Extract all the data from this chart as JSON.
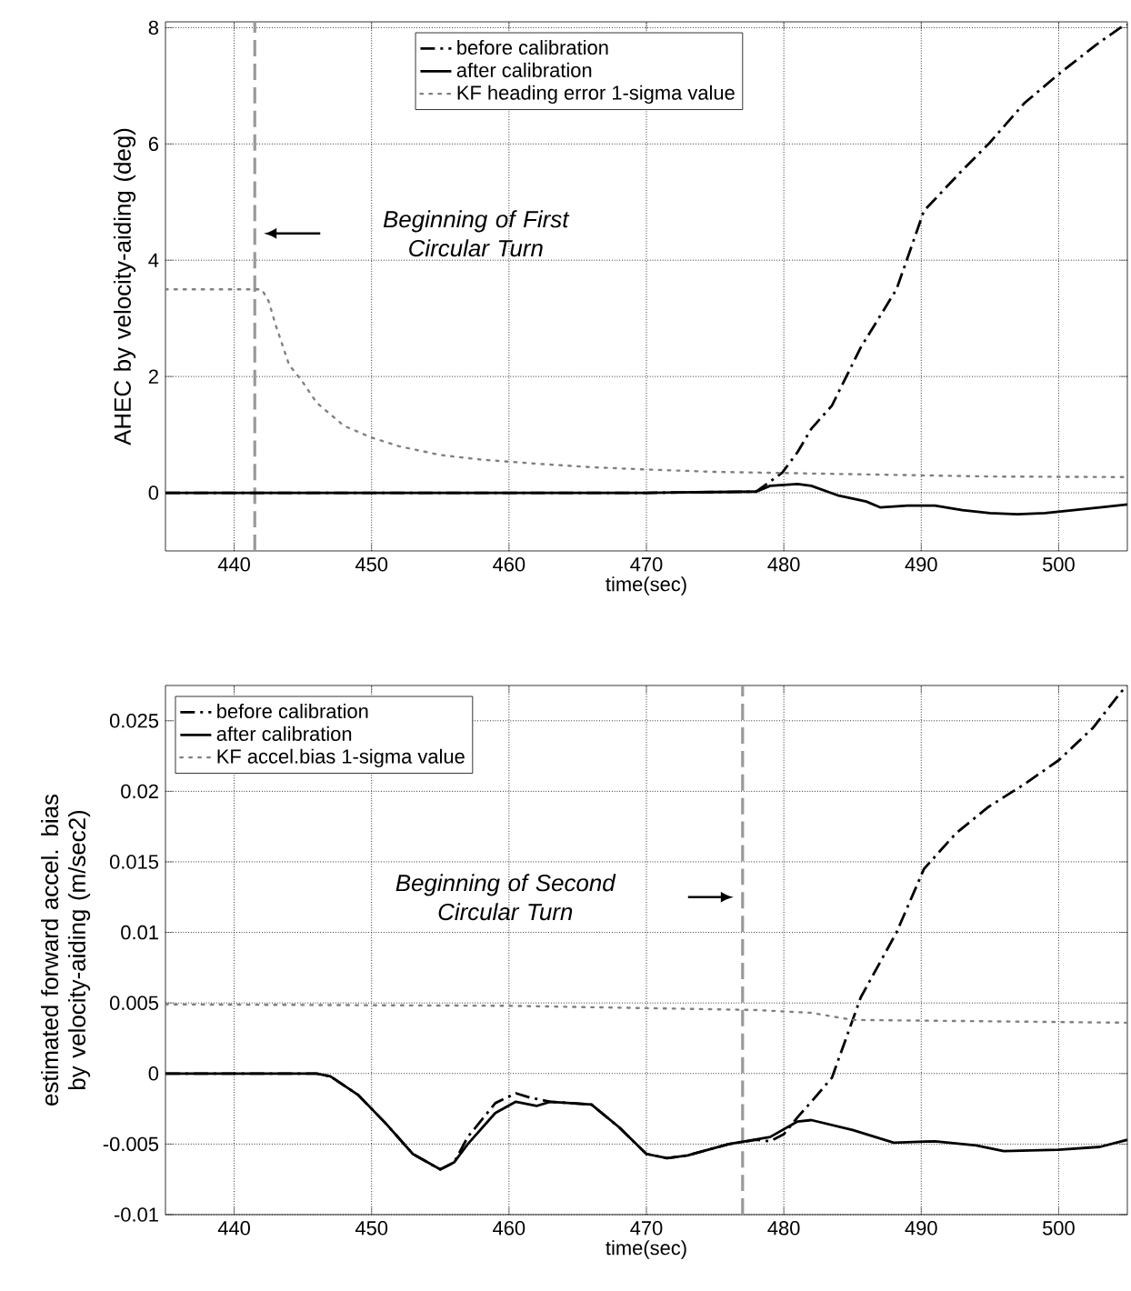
{
  "chart_data": [
    {
      "type": "line",
      "xlabel": "time(sec)",
      "ylabel": "AHEC by velocity-aiding (deg)",
      "xlim": [
        435,
        505
      ],
      "ylim": [
        -1,
        8.1
      ],
      "xticks": [
        440,
        450,
        460,
        470,
        480,
        490,
        500
      ],
      "yticks": [
        0,
        2,
        4,
        6,
        8
      ],
      "grid": true,
      "legend": "top",
      "series": [
        {
          "name": "before calibration",
          "color": "#000000",
          "line_style": "dashdot",
          "x": [
            435,
            450,
            470,
            478,
            479.9,
            481,
            482,
            483.5,
            485.6,
            488.2,
            490.2,
            492.8,
            494.9,
            497.5,
            500,
            502.7,
            504.5,
            505
          ],
          "values": [
            0,
            0,
            0,
            0.02,
            0.35,
            0.7,
            1.1,
            1.5,
            2.5,
            3.5,
            4.85,
            5.5,
            6.0,
            6.7,
            7.2,
            7.7,
            8.0,
            8.05
          ]
        },
        {
          "name": "after calibration",
          "color": "#000000",
          "line_style": "solid",
          "x": [
            435,
            450,
            470,
            478,
            479,
            481,
            482,
            484,
            486,
            487,
            489,
            491,
            493,
            495,
            497,
            499,
            501,
            503,
            505
          ],
          "values": [
            0,
            0,
            0,
            0.02,
            0.12,
            0.15,
            0.12,
            -0.05,
            -0.15,
            -0.25,
            -0.22,
            -0.22,
            -0.3,
            -0.35,
            -0.37,
            -0.35,
            -0.3,
            -0.25,
            -0.2
          ]
        },
        {
          "name": "KF heading error 1-sigma value",
          "color": "#808080",
          "line_style": "dotted",
          "x": [
            435,
            442,
            442.5,
            443,
            444,
            445,
            446,
            448,
            450,
            452,
            455,
            458,
            462,
            466,
            470,
            475,
            480,
            485,
            490,
            495,
            505
          ],
          "values": [
            3.5,
            3.5,
            3.3,
            2.9,
            2.2,
            1.9,
            1.55,
            1.15,
            0.95,
            0.8,
            0.65,
            0.57,
            0.5,
            0.44,
            0.4,
            0.36,
            0.34,
            0.32,
            0.3,
            0.28,
            0.27
          ]
        }
      ],
      "ref_lines": [
        {
          "axis": "x",
          "value": 441.5,
          "color": "#999999",
          "line_style": "dashed"
        }
      ],
      "annotations": [
        "Beginning of First Circular Turn"
      ]
    },
    {
      "type": "line",
      "xlabel": "time(sec)",
      "ylabel": "estimated forward accel. bias by velocity-aiding (m/sec2)",
      "xlim": [
        435,
        505
      ],
      "ylim": [
        -0.01,
        0.0275
      ],
      "xticks": [
        440,
        450,
        460,
        470,
        480,
        490,
        500
      ],
      "yticks": [
        -0.01,
        -0.005,
        0,
        0.005,
        0.01,
        0.015,
        0.02,
        0.025
      ],
      "grid": true,
      "legend": "top left",
      "series": [
        {
          "name": "before calibration",
          "color": "#000000",
          "line_style": "dashdot",
          "x": [
            435,
            446,
            447,
            449,
            451,
            453,
            455,
            456,
            457,
            459,
            460.5,
            461.5,
            463,
            466,
            468,
            470,
            471.5,
            473,
            476,
            478,
            479,
            480,
            481,
            482,
            483.5,
            485.6,
            488.2,
            490.2,
            492.5,
            494.9,
            497.5,
            500,
            502.5,
            504.5,
            505
          ],
          "values": [
            0,
            0,
            -0.0002,
            -0.0015,
            -0.0035,
            -0.0057,
            -0.0068,
            -0.0063,
            -0.0045,
            -0.0021,
            -0.0014,
            -0.0017,
            -0.002,
            -0.0022,
            -0.0038,
            -0.0057,
            -0.006,
            -0.0058,
            -0.005,
            -0.0047,
            -0.0048,
            -0.0043,
            -0.0031,
            -0.002,
            -0.0003,
            0.0054,
            0.01,
            0.0145,
            0.017,
            0.0189,
            0.0205,
            0.0222,
            0.0245,
            0.027,
            0.0275
          ]
        },
        {
          "name": "after calibration",
          "color": "#000000",
          "line_style": "solid",
          "x": [
            435,
            446,
            447,
            449,
            451,
            453,
            455,
            456,
            457,
            459,
            460.5,
            462,
            463,
            466,
            468,
            470,
            471.5,
            473,
            476,
            479,
            481,
            482,
            485,
            488,
            491,
            494,
            496,
            500,
            503,
            505
          ],
          "values": [
            0,
            0,
            -0.0002,
            -0.0015,
            -0.0035,
            -0.0057,
            -0.0068,
            -0.0063,
            -0.005,
            -0.0028,
            -0.002,
            -0.0023,
            -0.002,
            -0.0022,
            -0.0038,
            -0.0057,
            -0.006,
            -0.0058,
            -0.005,
            -0.0045,
            -0.0034,
            -0.0033,
            -0.004,
            -0.0049,
            -0.0048,
            -0.0051,
            -0.0055,
            -0.0054,
            -0.0052,
            -0.0047
          ]
        },
        {
          "name": "KF accel.bias 1-sigma value",
          "color": "#808080",
          "line_style": "dotted",
          "x": [
            435,
            460,
            478,
            482,
            485,
            505
          ],
          "values": [
            0.0049,
            0.0048,
            0.0045,
            0.0043,
            0.0038,
            0.0036
          ]
        }
      ],
      "ref_lines": [
        {
          "axis": "x",
          "value": 477,
          "color": "#999999",
          "line_style": "dashed"
        }
      ],
      "annotations": [
        "Beginning of Second Circular Turn"
      ]
    }
  ]
}
